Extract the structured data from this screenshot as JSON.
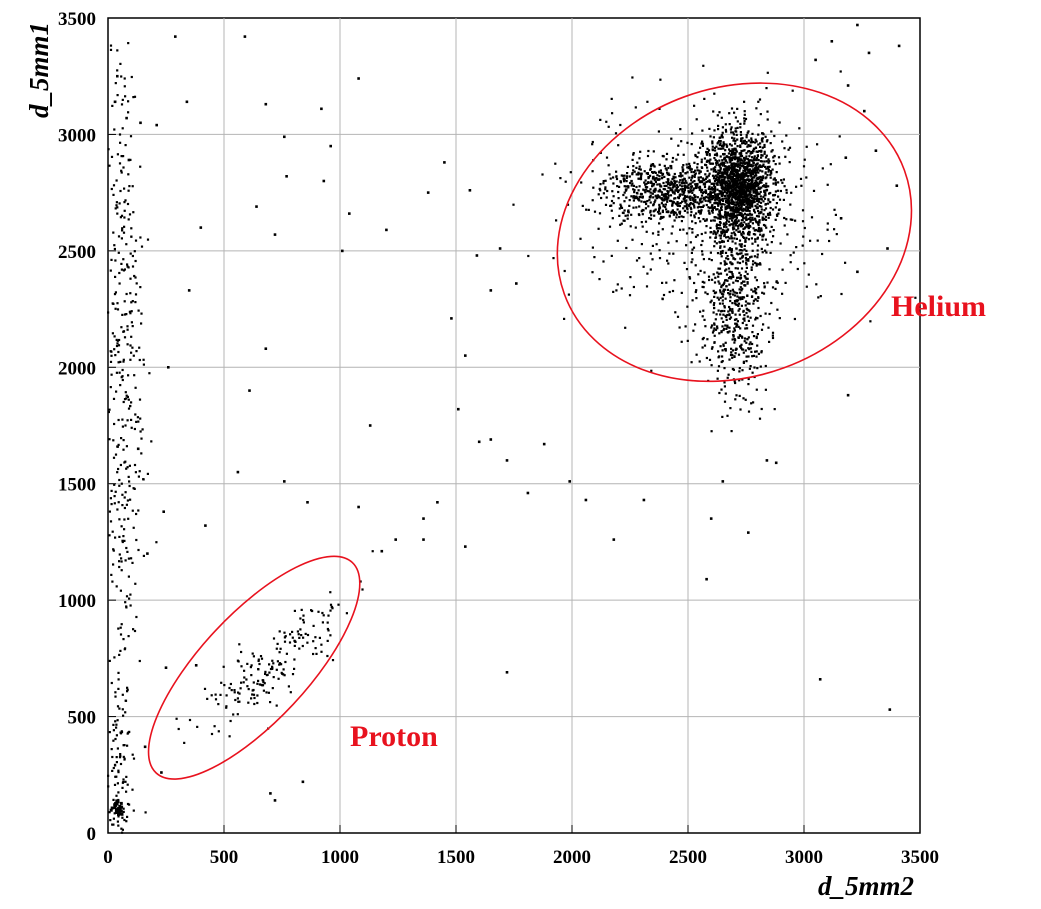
{
  "chart_data": {
    "type": "scatter",
    "title": "",
    "xlabel": "d_5mm2",
    "ylabel": "d_5mm1",
    "xlim": [
      0,
      3500
    ],
    "ylim": [
      0,
      3500
    ],
    "xticks": [
      "0",
      "500",
      "1000",
      "1500",
      "2000",
      "2500",
      "3000",
      "3500"
    ],
    "yticks": [
      "0",
      "500",
      "1000",
      "1500",
      "2000",
      "2500",
      "3000",
      "3500"
    ],
    "grid": true,
    "annotation_color": "#e8121e",
    "annotations": [
      {
        "label": "Helium",
        "region": {
          "cx": 2700,
          "cy": 2580,
          "rx": 780,
          "ry": 620,
          "rotation_deg": -20
        }
      },
      {
        "label": "Proton",
        "region": {
          "cx": 630,
          "cy": 710,
          "rx": 620,
          "ry": 230,
          "rotation_deg": -47
        }
      }
    ],
    "clusters": [
      {
        "name": "helium-core",
        "count": 1600,
        "center": [
          2720,
          2770
        ],
        "spread": [
          75,
          115
        ]
      },
      {
        "name": "helium-left-lobe",
        "count": 650,
        "center": [
          2420,
          2760
        ],
        "spread": [
          140,
          65
        ]
      },
      {
        "name": "helium-tail",
        "count": 500,
        "center": [
          2700,
          2250
        ],
        "spread": [
          75,
          190
        ]
      },
      {
        "name": "helium-halo",
        "count": 400,
        "center": [
          2600,
          2650
        ],
        "spread": [
          290,
          260
        ]
      },
      {
        "name": "proton-band",
        "count": 190,
        "center": [
          700,
          720
        ],
        "spread": [
          150,
          120
        ]
      },
      {
        "name": "low-x-column",
        "count": 380,
        "center": [
          60,
          2000
        ],
        "spread": [
          45,
          750
        ]
      },
      {
        "name": "low-corner",
        "count": 120,
        "center": [
          40,
          300
        ],
        "spread": [
          30,
          250
        ]
      }
    ],
    "sparse_points": [
      [
        290,
        3420
      ],
      [
        590,
        3420
      ],
      [
        1080,
        3240
      ],
      [
        680,
        3130
      ],
      [
        920,
        3110
      ],
      [
        340,
        3140
      ],
      [
        210,
        3040
      ],
      [
        140,
        3050
      ],
      [
        760,
        2990
      ],
      [
        960,
        2950
      ],
      [
        1450,
        2880
      ],
      [
        1380,
        2750
      ],
      [
        1560,
        2760
      ],
      [
        1040,
        2660
      ],
      [
        1200,
        2590
      ],
      [
        720,
        2570
      ],
      [
        640,
        2690
      ],
      [
        400,
        2600
      ],
      [
        930,
        2800
      ],
      [
        770,
        2820
      ],
      [
        1010,
        2500
      ],
      [
        350,
        2330
      ],
      [
        680,
        2080
      ],
      [
        260,
        2000
      ],
      [
        610,
        1900
      ],
      [
        1130,
        1750
      ],
      [
        560,
        1550
      ],
      [
        760,
        1510
      ],
      [
        1510,
        1820
      ],
      [
        1600,
        1680
      ],
      [
        1650,
        1690
      ],
      [
        1720,
        1600
      ],
      [
        1810,
        1460
      ],
      [
        1880,
        1670
      ],
      [
        1990,
        1510
      ],
      [
        2060,
        1430
      ],
      [
        2180,
        1260
      ],
      [
        2310,
        1430
      ],
      [
        1360,
        1350
      ],
      [
        1420,
        1420
      ],
      [
        1180,
        1210
      ],
      [
        1240,
        1260
      ],
      [
        1080,
        1400
      ],
      [
        1360,
        1260
      ],
      [
        1540,
        1230
      ],
      [
        2580,
        1090
      ],
      [
        2760,
        1290
      ],
      [
        3070,
        660
      ],
      [
        3370,
        530
      ],
      [
        1720,
        690
      ],
      [
        1480,
        2210
      ],
      [
        1540,
        2050
      ],
      [
        1650,
        2330
      ],
      [
        1590,
        2480
      ],
      [
        1690,
        2510
      ],
      [
        1760,
        2360
      ],
      [
        3120,
        3400
      ],
      [
        3230,
        3470
      ],
      [
        3280,
        3350
      ],
      [
        3410,
        3380
      ],
      [
        3050,
        3320
      ],
      [
        3190,
        3210
      ],
      [
        3260,
        3100
      ],
      [
        3180,
        2900
      ],
      [
        3310,
        2930
      ],
      [
        3360,
        2510
      ],
      [
        3400,
        2780
      ],
      [
        3160,
        2640
      ],
      [
        3230,
        2410
      ],
      [
        3190,
        1880
      ],
      [
        2840,
        1600
      ],
      [
        2880,
        1590
      ],
      [
        2650,
        1510
      ],
      [
        2600,
        1350
      ],
      [
        420,
        1320
      ],
      [
        240,
        1380
      ],
      [
        130,
        1650
      ],
      [
        170,
        1200
      ],
      [
        860,
        1420
      ],
      [
        40,
        3250
      ],
      [
        80,
        3070
      ],
      [
        90,
        2890
      ],
      [
        30,
        3140
      ],
      [
        380,
        720
      ],
      [
        250,
        710
      ],
      [
        160,
        370
      ],
      [
        230,
        260
      ],
      [
        720,
        140
      ],
      [
        700,
        170
      ],
      [
        840,
        220
      ]
    ]
  }
}
